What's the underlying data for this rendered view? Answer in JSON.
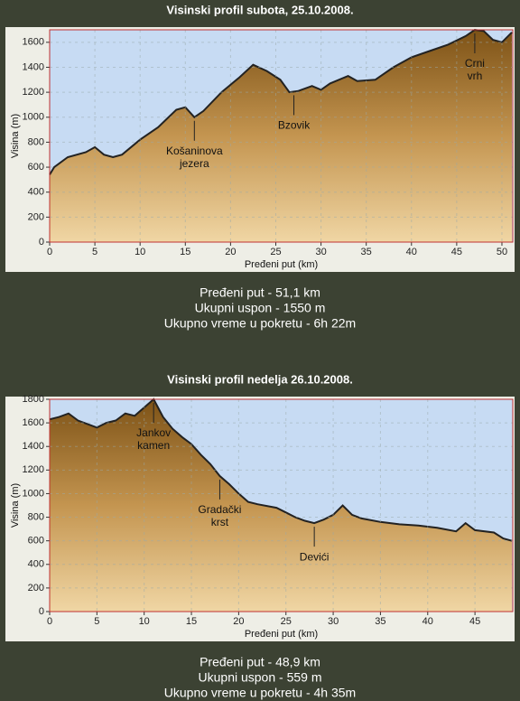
{
  "chart_data": [
    {
      "type": "area",
      "title": "Visinski profil subota, 25.10.2008.",
      "xlabel": "Pređeni put (km)",
      "ylabel": "Visina (m)",
      "x": [
        0,
        0.5,
        2,
        4,
        5,
        6,
        7,
        8,
        10,
        12,
        14,
        15,
        16,
        17,
        19,
        21,
        22.5,
        24,
        25.5,
        26.5,
        27.5,
        29,
        30,
        31,
        33,
        34,
        36,
        38,
        40,
        42,
        44,
        46,
        47,
        48,
        49,
        50,
        51.1
      ],
      "values": [
        540,
        600,
        680,
        720,
        760,
        700,
        680,
        700,
        820,
        920,
        1060,
        1080,
        1000,
        1050,
        1200,
        1320,
        1420,
        1370,
        1300,
        1200,
        1210,
        1250,
        1220,
        1270,
        1330,
        1290,
        1300,
        1400,
        1480,
        1530,
        1580,
        1650,
        1700,
        1690,
        1620,
        1600,
        1680
      ],
      "xlim": [
        0,
        51.2
      ],
      "ylim": [
        0,
        1700
      ],
      "xticks": [
        0,
        5,
        10,
        15,
        20,
        25,
        30,
        35,
        40,
        45,
        50
      ],
      "yticks": [
        0,
        200,
        400,
        600,
        800,
        1000,
        1200,
        1400,
        1600
      ],
      "grid": true,
      "annotations": [
        {
          "label": [
            "Košaninova",
            "jezera"
          ],
          "x": 16,
          "y": 1000
        },
        {
          "label": [
            "Bzovik"
          ],
          "x": 27,
          "y": 1205
        },
        {
          "label": [
            "Crni",
            "vrh"
          ],
          "x": 47,
          "y": 1700
        }
      ],
      "stats": [
        "Pređeni put - 51,1 km",
        "Ukupni uspon - 1550 m",
        "Ukupno vreme u pokretu - 6h 22m"
      ]
    },
    {
      "type": "area",
      "title": "Visinski profil nedelja 26.10.2008.",
      "xlabel": "Pređeni put (km)",
      "ylabel": "Visina (m)",
      "x": [
        0,
        1,
        2,
        3,
        4,
        5,
        6,
        7,
        8,
        9,
        10,
        11,
        12,
        13,
        14,
        15,
        16,
        17,
        18,
        19,
        20,
        21,
        22,
        24,
        25,
        26,
        27,
        28,
        29,
        30,
        31,
        32,
        33,
        35,
        37,
        39,
        41,
        43,
        44,
        45,
        47,
        48,
        48.9
      ],
      "values": [
        1630,
        1650,
        1680,
        1620,
        1590,
        1560,
        1600,
        1620,
        1680,
        1660,
        1730,
        1800,
        1650,
        1550,
        1480,
        1420,
        1330,
        1250,
        1150,
        1080,
        1000,
        930,
        910,
        880,
        840,
        800,
        770,
        750,
        780,
        820,
        900,
        820,
        790,
        760,
        740,
        730,
        710,
        680,
        750,
        690,
        670,
        620,
        600
      ],
      "xlim": [
        0,
        49
      ],
      "ylim": [
        0,
        1800
      ],
      "xticks": [
        0,
        5,
        10,
        15,
        20,
        25,
        30,
        35,
        40,
        45
      ],
      "yticks": [
        0,
        200,
        400,
        600,
        800,
        1000,
        1200,
        1400,
        1600,
        1800
      ],
      "grid": true,
      "annotations": [
        {
          "label": [
            "Jankov",
            "kamen"
          ],
          "x": 11,
          "y": 1800
        },
        {
          "label": [
            "Gradački",
            "krst"
          ],
          "x": 18,
          "y": 1150
        },
        {
          "label": [
            "Devići"
          ],
          "x": 28,
          "y": 750
        }
      ],
      "stats": [
        "Pređeni put - 48,9 km",
        "Ukupni uspon - 559 m",
        "Ukupno vreme u pokretu - 4h 35m"
      ]
    }
  ]
}
